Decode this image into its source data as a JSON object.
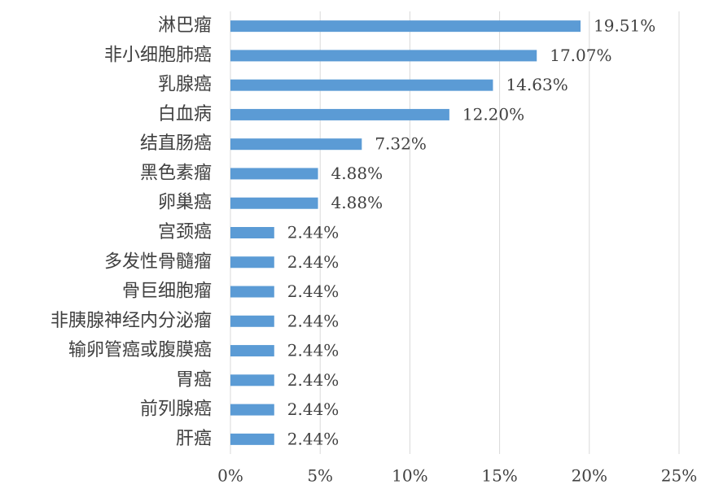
{
  "chart_data": {
    "type": "barh",
    "categories": [
      "淋巴瘤",
      "非小细胞肺癌",
      "乳腺癌",
      "白血病",
      "结直肠癌",
      "黑色素瘤",
      "卵巢癌",
      "宫颈癌",
      "多发性骨髓瘤",
      "骨巨细胞瘤",
      "非胰腺神经内分泌瘤",
      "输卵管癌或腹膜癌",
      "胃癌",
      "前列腺癌",
      "肝癌"
    ],
    "values": [
      19.51,
      17.07,
      14.63,
      12.2,
      7.32,
      4.88,
      4.88,
      2.44,
      2.44,
      2.44,
      2.44,
      2.44,
      2.44,
      2.44,
      2.44
    ],
    "value_labels": [
      "19.51%",
      "17.07%",
      "14.63%",
      "12.20%",
      "7.32%",
      "4.88%",
      "4.88%",
      "2.44%",
      "2.44%",
      "2.44%",
      "2.44%",
      "2.44%",
      "2.44%",
      "2.44%",
      "2.44%"
    ],
    "color": "#5b9bd5",
    "xlim": [
      0,
      25
    ],
    "xticks": [
      {
        "value": 0,
        "label": "0%"
      },
      {
        "value": 5,
        "label": "5%"
      },
      {
        "value": 10,
        "label": "10%"
      },
      {
        "value": 15,
        "label": "15%"
      },
      {
        "value": 20,
        "label": "20%"
      },
      {
        "value": 25,
        "label": "25%"
      }
    ],
    "grid": true
  }
}
